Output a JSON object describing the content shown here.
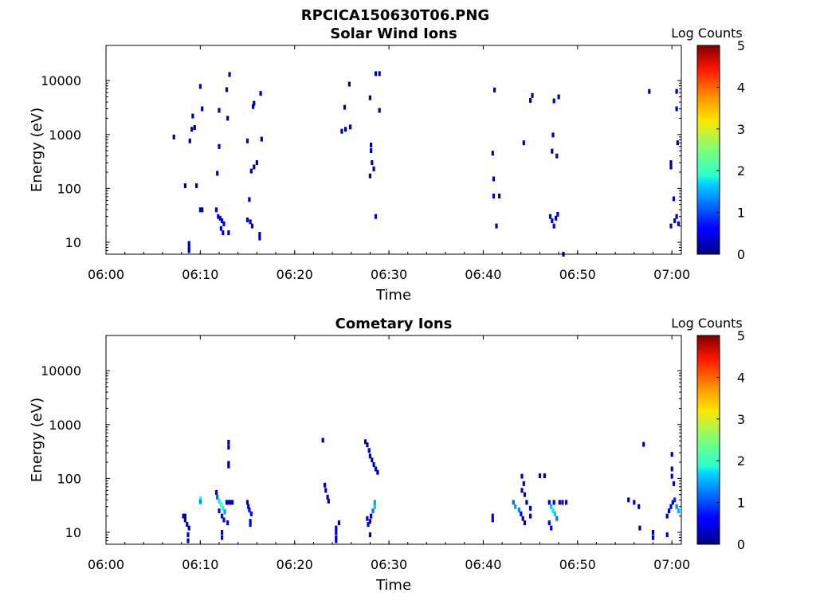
{
  "figure": {
    "title": "RPCICA150630T06.PNG"
  },
  "chart_data": [
    {
      "type": "heatmap",
      "title": "Solar Wind Ions",
      "xlabel": "Time",
      "ylabel": "Energy (eV)",
      "yscale": "log",
      "ylim": [
        6,
        45000
      ],
      "xlim": [
        "06:00",
        "07:01"
      ],
      "xticks": [
        "06:00",
        "06:10",
        "06:20",
        "06:30",
        "06:40",
        "06:50",
        "07:00"
      ],
      "yticks": [
        "10",
        "100",
        "1000",
        "10000"
      ],
      "colorbar": {
        "label": "Log Counts",
        "min": 0,
        "max": 5,
        "ticks": [
          "0",
          "1",
          "2",
          "3",
          "4",
          "5"
        ],
        "colormap": "jet"
      },
      "grid": false,
      "cells": [
        [
          "06:07.2",
          900,
          0.2
        ],
        [
          "06:08.4",
          112,
          0.2
        ],
        [
          "06:08.9",
          760,
          0.2
        ],
        [
          "06:09.2",
          2200,
          0.2
        ],
        [
          "06:09.1",
          1250,
          0.2
        ],
        [
          "06:09.4",
          1350,
          0.2
        ],
        [
          "06:09.6",
          112,
          0.2
        ],
        [
          "06:10.0",
          7800,
          0.2
        ],
        [
          "06:10.2",
          3000,
          0.2
        ],
        [
          "06:08.8",
          8,
          0.3
        ],
        [
          "06:08.8",
          9.5,
          0.3
        ],
        [
          "06:08.8",
          7,
          0.3
        ],
        [
          "06:10.0",
          40,
          0.3
        ],
        [
          "06:10.2",
          40,
          0.3
        ],
        [
          "06:11.7",
          40,
          0.4
        ],
        [
          "06:11.9",
          30,
          0.4
        ],
        [
          "06:12.1",
          28,
          0.4
        ],
        [
          "06:12.3",
          25,
          0.4
        ],
        [
          "06:12.5",
          22,
          0.4
        ],
        [
          "06:12.2",
          18,
          0.4
        ],
        [
          "06:12.4",
          15,
          0.4
        ],
        [
          "06:12.0",
          600,
          0.2
        ],
        [
          "06:11.8",
          190,
          0.2
        ],
        [
          "06:12.0",
          2800,
          0.2
        ],
        [
          "06:12.8",
          6800,
          0.2
        ],
        [
          "06:13.1",
          13000,
          0.2
        ],
        [
          "06:12.9",
          2000,
          0.2
        ],
        [
          "06:13.0",
          15,
          0.3
        ],
        [
          "06:15.0",
          760,
          0.2
        ],
        [
          "06:15.2",
          62,
          0.3
        ],
        [
          "06:15.0",
          26,
          0.4
        ],
        [
          "06:15.3",
          24,
          0.4
        ],
        [
          "06:15.5",
          20,
          0.3
        ],
        [
          "06:15.4",
          210,
          0.2
        ],
        [
          "06:15.7",
          250,
          0.2
        ],
        [
          "06:16.0",
          300,
          0.2
        ],
        [
          "06:15.7",
          3800,
          0.2
        ],
        [
          "06:15.6",
          3300,
          0.2
        ],
        [
          "06:16.4",
          5800,
          0.2
        ],
        [
          "06:16.5",
          820,
          0.2
        ],
        [
          "06:16.3",
          14,
          0.3
        ],
        [
          "06:16.3",
          12,
          0.3
        ],
        [
          "06:25.0",
          1150,
          0.2
        ],
        [
          "06:25.4",
          1250,
          0.2
        ],
        [
          "06:25.9",
          1380,
          0.2
        ],
        [
          "06:25.3",
          3200,
          0.2
        ],
        [
          "06:25.8",
          8600,
          0.2
        ],
        [
          "06:28.0",
          4800,
          0.2
        ],
        [
          "06:28.1",
          640,
          0.2
        ],
        [
          "06:28.1",
          500,
          0.2
        ],
        [
          "06:28.2",
          300,
          0.2
        ],
        [
          "06:28.4",
          230,
          0.2
        ],
        [
          "06:28.0",
          170,
          0.2
        ],
        [
          "06:28.6",
          13500,
          0.2
        ],
        [
          "06:29.0",
          13500,
          0.2
        ],
        [
          "06:29.0",
          2800,
          0.2
        ],
        [
          "06:28.6",
          30,
          0.3
        ],
        [
          "06:41.0",
          450,
          0.2
        ],
        [
          "06:41.1",
          150,
          0.2
        ],
        [
          "06:41.1",
          72,
          0.3
        ],
        [
          "06:41.7",
          72,
          0.3
        ],
        [
          "06:41.2",
          6700,
          0.2
        ],
        [
          "06:41.4",
          20,
          0.3
        ],
        [
          "06:44.3",
          700,
          0.2
        ],
        [
          "06:45.0",
          4300,
          0.2
        ],
        [
          "06:45.2",
          5300,
          0.2
        ],
        [
          "06:47.1",
          30,
          0.4
        ],
        [
          "06:47.3",
          25,
          0.4
        ],
        [
          "06:47.5",
          20,
          0.4
        ],
        [
          "06:47.7",
          28,
          0.4
        ],
        [
          "06:47.9",
          33,
          0.4
        ],
        [
          "06:47.3",
          490,
          0.2
        ],
        [
          "06:47.8",
          400,
          0.2
        ],
        [
          "06:47.4",
          980,
          0.2
        ],
        [
          "06:47.5",
          4200,
          0.2
        ],
        [
          "06:48.0",
          5000,
          0.2
        ],
        [
          "06:48.5",
          6,
          0.3
        ],
        [
          "06:57.6",
          6300,
          0.2
        ],
        [
          "06:59.9",
          300,
          0.2
        ],
        [
          "06:59.9",
          250,
          0.2
        ],
        [
          "07:00.2",
          64,
          0.3
        ],
        [
          "07:00.5",
          6300,
          0.2
        ],
        [
          "07:00.5",
          3000,
          0.2
        ],
        [
          "07:00.6",
          700,
          0.2
        ],
        [
          "06:59.9",
          20,
          0.3
        ],
        [
          "07:00.3",
          25,
          0.3
        ],
        [
          "07:00.5",
          30,
          0.4
        ],
        [
          "07:00.7",
          22,
          0.3
        ]
      ]
    },
    {
      "type": "heatmap",
      "title": "Cometary Ions",
      "xlabel": "Time",
      "ylabel": "Energy (eV)",
      "yscale": "log",
      "ylim": [
        6,
        45000
      ],
      "xlim": [
        "06:00",
        "07:01"
      ],
      "xticks": [
        "06:00",
        "06:10",
        "06:20",
        "06:30",
        "06:40",
        "06:50",
        "07:00"
      ],
      "yticks": [
        "10",
        "100",
        "1000",
        "10000"
      ],
      "colorbar": {
        "label": "Log Counts",
        "min": 0,
        "max": 5,
        "ticks": [
          "0",
          "1",
          "2",
          "3",
          "4",
          "5"
        ],
        "colormap": "jet"
      },
      "grid": false,
      "cells": [
        [
          "06:08.2",
          20,
          0.3
        ],
        [
          "06:08.4",
          17,
          0.3
        ],
        [
          "06:08.6",
          14,
          0.3
        ],
        [
          "06:08.8",
          12,
          0.3
        ],
        [
          "06:08.4",
          20,
          0.3
        ],
        [
          "06:08.7",
          9,
          0.3
        ],
        [
          "06:08.7",
          7,
          0.3
        ],
        [
          "06:10.0",
          42,
          2.1
        ],
        [
          "06:10.0",
          37,
          1.3
        ],
        [
          "06:11.7",
          55,
          0.4
        ],
        [
          "06:11.8",
          45,
          1.1
        ],
        [
          "06:12.0",
          38,
          1.8
        ],
        [
          "06:12.2",
          33,
          2.2
        ],
        [
          "06:12.4",
          28,
          2.0
        ],
        [
          "06:12.6",
          24,
          1.4
        ],
        [
          "06:12.8",
          36,
          0.3
        ],
        [
          "06:13.0",
          36,
          0.3
        ],
        [
          "06:13.2",
          36,
          0.3
        ],
        [
          "06:13.4",
          36,
          0.3
        ],
        [
          "06:12.0",
          25,
          0.6
        ],
        [
          "06:12.3",
          20,
          0.6
        ],
        [
          "06:12.5",
          17,
          0.6
        ],
        [
          "06:12.3",
          10,
          0.5
        ],
        [
          "06:12.3",
          8,
          0.5
        ],
        [
          "06:12.9",
          15,
          0.5
        ],
        [
          "06:13.0",
          470,
          0.2
        ],
        [
          "06:13.0",
          380,
          0.2
        ],
        [
          "06:13.0",
          190,
          0.2
        ],
        [
          "06:13.0",
          170,
          0.2
        ],
        [
          "06:15.0",
          36,
          0.3
        ],
        [
          "06:15.1",
          30,
          0.4
        ],
        [
          "06:15.2",
          26,
          0.6
        ],
        [
          "06:15.4",
          22,
          0.6
        ],
        [
          "06:15.3",
          16,
          0.6
        ],
        [
          "06:15.3",
          14,
          0.6
        ],
        [
          "06:23.0",
          510,
          0.2
        ],
        [
          "06:23.2",
          75,
          0.3
        ],
        [
          "06:23.3",
          60,
          0.3
        ],
        [
          "06:23.5",
          45,
          0.3
        ],
        [
          "06:23.6",
          38,
          0.3
        ],
        [
          "06:24.7",
          15,
          0.3
        ],
        [
          "06:24.4",
          12,
          0.3
        ],
        [
          "06:24.4",
          10,
          0.3
        ],
        [
          "06:24.4",
          8,
          0.3
        ],
        [
          "06:24.4",
          7,
          0.3
        ],
        [
          "06:27.5",
          480,
          0.2
        ],
        [
          "06:27.7",
          420,
          0.2
        ],
        [
          "06:27.9",
          330,
          0.3
        ],
        [
          "06:28.0",
          260,
          0.3
        ],
        [
          "06:28.2",
          220,
          0.3
        ],
        [
          "06:28.4",
          180,
          0.3
        ],
        [
          "06:28.6",
          150,
          0.3
        ],
        [
          "06:28.8",
          130,
          0.2
        ],
        [
          "06:28.0",
          16,
          0.3
        ],
        [
          "06:27.7",
          18,
          0.3
        ],
        [
          "06:27.8",
          14,
          0.3
        ],
        [
          "06:28.5",
          36,
          1.4
        ],
        [
          "06:28.5",
          30,
          1.6
        ],
        [
          "06:28.3",
          25,
          1.2
        ],
        [
          "06:28.1",
          20,
          0.5
        ],
        [
          "06:28.0",
          9,
          0.3
        ],
        [
          "06:41.0",
          20,
          0.6
        ],
        [
          "06:41.0",
          17,
          0.6
        ],
        [
          "06:43.2",
          36,
          1.1
        ],
        [
          "06:43.4",
          30,
          1.4
        ],
        [
          "06:43.8",
          26,
          1.3
        ],
        [
          "06:44.0",
          22,
          0.5
        ],
        [
          "06:44.2",
          18,
          0.3
        ],
        [
          "06:44.4",
          15,
          0.3
        ],
        [
          "06:44.6",
          36,
          0.3
        ],
        [
          "06:44.1",
          110,
          0.3
        ],
        [
          "06:44.3",
          80,
          0.3
        ],
        [
          "06:44.1",
          60,
          0.3
        ],
        [
          "06:44.4",
          50,
          0.3
        ],
        [
          "06:45.0",
          28,
          0.4
        ],
        [
          "06:45.0",
          20,
          0.4
        ],
        [
          "06:46.0",
          112,
          0.2
        ],
        [
          "06:46.5",
          112,
          0.2
        ],
        [
          "06:47.0",
          36,
          0.4
        ],
        [
          "06:47.2",
          30,
          1.6
        ],
        [
          "06:47.4",
          25,
          1.8
        ],
        [
          "06:47.6",
          22,
          1.6
        ],
        [
          "06:47.8",
          18,
          1.2
        ],
        [
          "06:47.0",
          15,
          0.4
        ],
        [
          "06:47.2",
          12,
          0.5
        ],
        [
          "06:47.5",
          36,
          0.4
        ],
        [
          "06:48.1",
          36,
          0.3
        ],
        [
          "06:48.4",
          36,
          0.6
        ],
        [
          "06:48.8",
          36,
          0.6
        ],
        [
          "06:55.4",
          40,
          0.2
        ],
        [
          "06:56.0",
          36,
          0.3
        ],
        [
          "06:56.5",
          30,
          0.2
        ],
        [
          "06:56.6",
          12,
          0.3
        ],
        [
          "06:57.0",
          430,
          0.2
        ],
        [
          "06:58.0",
          10,
          0.3
        ],
        [
          "06:58.0",
          8,
          0.3
        ],
        [
          "06:59.5",
          20,
          0.3
        ],
        [
          "06:59.7",
          25,
          0.4
        ],
        [
          "06:59.9",
          30,
          0.5
        ],
        [
          "07:00.1",
          36,
          0.6
        ],
        [
          "07:00.3",
          40,
          0.8
        ],
        [
          "07:00.5",
          30,
          1.3
        ],
        [
          "07:00.7",
          25,
          1.5
        ],
        [
          "07:00.0",
          280,
          0.2
        ],
        [
          "07:00.0",
          150,
          0.3
        ],
        [
          "07:00.0",
          110,
          0.3
        ],
        [
          "07:00.2",
          80,
          0.3
        ],
        [
          "06:59.5",
          9,
          0.3
        ]
      ]
    }
  ]
}
